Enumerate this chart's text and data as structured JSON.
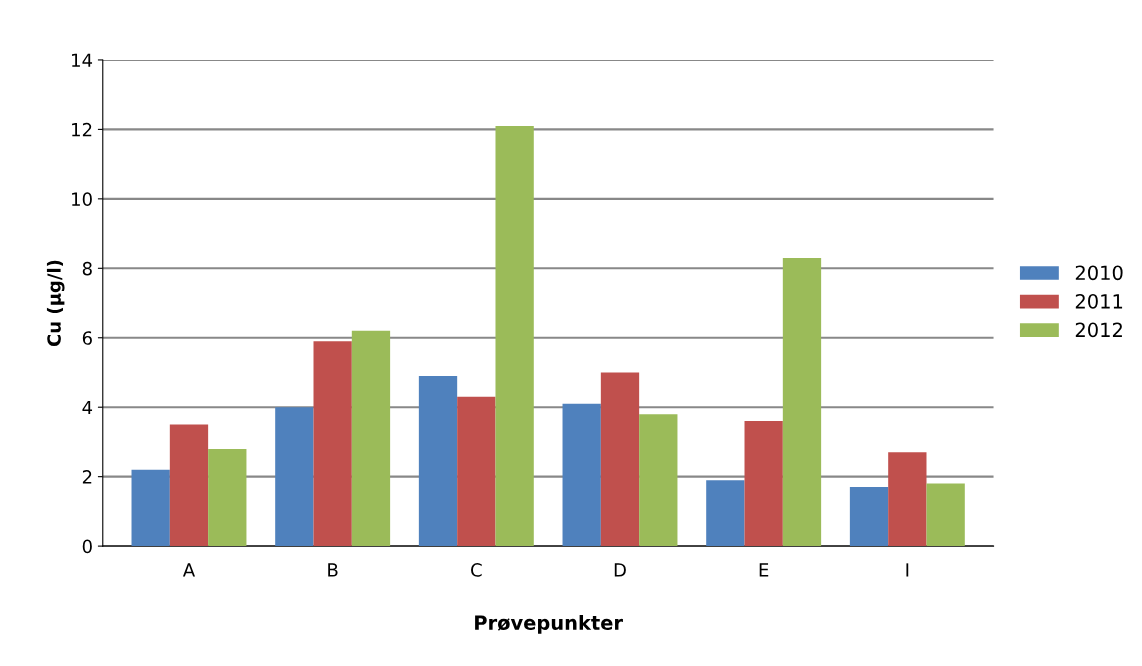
{
  "chart_data": {
    "type": "bar",
    "xlabel": "Prøvepunkter",
    "ylabel": "Cu (µg/l)",
    "categories": [
      "A",
      "B",
      "C",
      "D",
      "E",
      "I"
    ],
    "series": [
      {
        "name": "2010",
        "color": "#4f81bd",
        "values": [
          2.2,
          4.0,
          4.9,
          4.1,
          1.9,
          1.7
        ]
      },
      {
        "name": "2011",
        "color": "#c0504d",
        "values": [
          3.5,
          5.9,
          4.3,
          5.0,
          3.6,
          2.7
        ]
      },
      {
        "name": "2012",
        "color": "#9bbb59",
        "values": [
          2.8,
          6.2,
          12.1,
          3.8,
          8.3,
          1.8
        ]
      }
    ],
    "ylim": [
      0,
      14
    ],
    "yticks": [
      0,
      2,
      4,
      6,
      8,
      10,
      12,
      14
    ],
    "grid": "y",
    "legend": "right"
  }
}
